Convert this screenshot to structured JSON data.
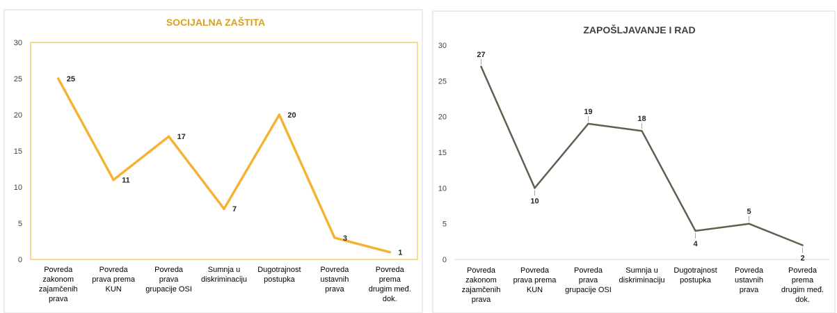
{
  "colors": {
    "left_series": "#F5B335",
    "left_title": "#D9A11E",
    "left_plot_border": "#F2C04A",
    "right_series": "#5F5F4F",
    "right_title": "#404040",
    "panel_border": "#D9D9D9",
    "gridline": "#D9D9D9",
    "label_text": "#262626"
  },
  "chart_data": [
    {
      "type": "line",
      "title": "SOCIJALNA ZAŠTITA",
      "categories": [
        [
          "Povreda",
          "zakonom",
          "zajamčenih",
          "prava"
        ],
        [
          "Povreda",
          "prava prema",
          "KUN"
        ],
        [
          "Povreda",
          "prava",
          "grupacije OSI"
        ],
        [
          "Sumnja u",
          "diskriminaciju"
        ],
        [
          "Dugotrajnost",
          "postupka"
        ],
        [
          "Povreda",
          "ustavnih",
          "prava"
        ],
        [
          "Povreda",
          "prema",
          "drugim međ.",
          "dok."
        ]
      ],
      "series": [
        {
          "values": [
            25,
            11,
            17,
            7,
            20,
            3,
            1
          ],
          "labels": [
            "25",
            "11",
            "17",
            "7",
            "20",
            "3",
            "1"
          ]
        }
      ],
      "ylim": [
        0,
        30
      ],
      "yticks": [
        "0",
        "5",
        "10",
        "15",
        "20",
        "25",
        "30"
      ],
      "grid": false,
      "xlabel": "",
      "ylabel": ""
    },
    {
      "type": "line",
      "title": "ZAPOŠLJAVANJE I RAD",
      "categories": [
        [
          "Povreda",
          "zakonom",
          "zajamčenih",
          "prava"
        ],
        [
          "Povreda",
          "prava prema",
          "KUN"
        ],
        [
          "Povreda",
          "prava",
          "grupacije OSI"
        ],
        [
          "Sumnja u",
          "diskriminaciju"
        ],
        [
          "Dugotrajnost",
          "postupka"
        ],
        [
          "Povreda",
          "ustavnih",
          "prava"
        ],
        [
          "Povreda",
          "prema",
          "drugim međ.",
          "dok."
        ]
      ],
      "series": [
        {
          "values": [
            27,
            10,
            19,
            18,
            4,
            5,
            2
          ],
          "labels": [
            "27",
            "10",
            "19",
            "18",
            "4",
            "5",
            "2"
          ]
        }
      ],
      "ylim": [
        0,
        30
      ],
      "yticks": [
        "0",
        "5",
        "10",
        "15",
        "20",
        "25",
        "30"
      ],
      "grid": false,
      "xlabel": "",
      "ylabel": ""
    }
  ]
}
